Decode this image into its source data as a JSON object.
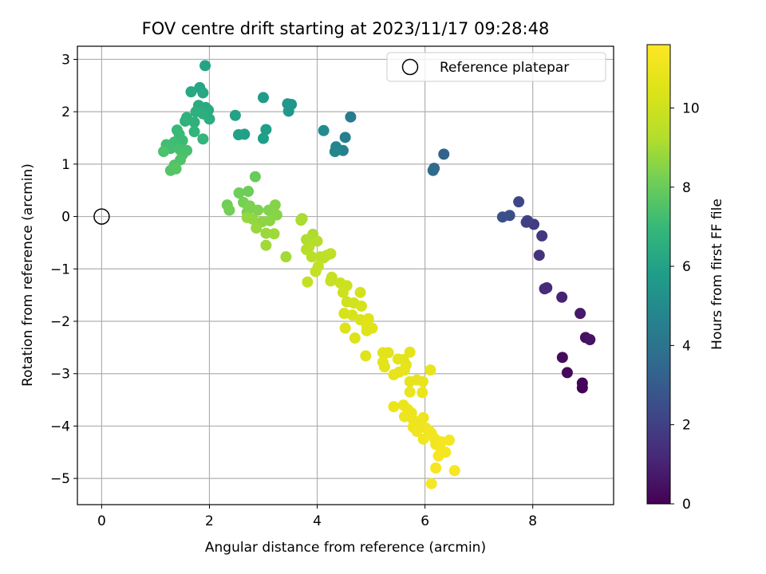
{
  "chart_data": {
    "type": "scatter",
    "title": "FOV centre drift starting at 2023/11/17 09:28:48",
    "xlabel": "Angular distance from reference (arcmin)",
    "ylabel": "Rotation from reference (arcmin)",
    "xlim": [
      -0.45,
      9.5
    ],
    "ylim": [
      -5.5,
      3.25
    ],
    "xticks": [
      0,
      2,
      4,
      6,
      8
    ],
    "yticks": [
      3,
      2,
      1,
      0,
      -1,
      -2,
      -3,
      -4,
      -5
    ],
    "grid": true,
    "legend": {
      "position": "top-right",
      "entries": [
        "Reference platepar"
      ]
    },
    "reference_point": {
      "x": 0,
      "y": 0,
      "label": "Reference platepar"
    },
    "colorbar": {
      "label": "Hours from first FF file",
      "range": [
        0,
        11.6
      ],
      "ticks": [
        0,
        2,
        4,
        6,
        8,
        10
      ],
      "colormap": "viridis"
    },
    "series": [
      {
        "values": [
          {
            "x": 8.92,
            "y": -3.27,
            "c": 0.0
          },
          {
            "x": 8.92,
            "y": -3.18,
            "c": 0.1
          },
          {
            "x": 8.64,
            "y": -2.98,
            "c": 0.2
          },
          {
            "x": 8.55,
            "y": -2.69,
            "c": 0.3
          },
          {
            "x": 8.98,
            "y": -2.31,
            "c": 0.45
          },
          {
            "x": 9.06,
            "y": -2.35,
            "c": 0.55
          },
          {
            "x": 8.88,
            "y": -1.85,
            "c": 0.7
          },
          {
            "x": 8.54,
            "y": -1.54,
            "c": 1.0
          },
          {
            "x": 8.26,
            "y": -1.36,
            "c": 1.2
          },
          {
            "x": 8.22,
            "y": -1.38,
            "c": 1.3
          },
          {
            "x": 8.12,
            "y": -0.74,
            "c": 1.5
          },
          {
            "x": 8.17,
            "y": -0.37,
            "c": 1.7
          },
          {
            "x": 8.02,
            "y": -0.15,
            "c": 1.85
          },
          {
            "x": 7.88,
            "y": -0.11,
            "c": 1.95
          },
          {
            "x": 7.9,
            "y": -0.08,
            "c": 2.0
          },
          {
            "x": 7.74,
            "y": 0.28,
            "c": 2.2
          },
          {
            "x": 7.57,
            "y": 0.02,
            "c": 2.5
          },
          {
            "x": 7.44,
            "y": -0.01,
            "c": 2.6
          },
          {
            "x": 6.35,
            "y": 1.19,
            "c": 3.3
          },
          {
            "x": 6.17,
            "y": 0.92,
            "c": 3.5
          },
          {
            "x": 6.15,
            "y": 0.88,
            "c": 3.6
          },
          {
            "x": 4.62,
            "y": 1.9,
            "c": 4.3
          },
          {
            "x": 4.52,
            "y": 1.51,
            "c": 4.5
          },
          {
            "x": 4.48,
            "y": 1.26,
            "c": 4.6
          },
          {
            "x": 4.35,
            "y": 1.33,
            "c": 4.75
          },
          {
            "x": 4.33,
            "y": 1.24,
            "c": 4.8
          },
          {
            "x": 4.12,
            "y": 1.64,
            "c": 5.0
          },
          {
            "x": 3.52,
            "y": 2.14,
            "c": 5.5
          },
          {
            "x": 3.45,
            "y": 2.15,
            "c": 5.55
          },
          {
            "x": 3.47,
            "y": 2.01,
            "c": 5.6
          },
          {
            "x": 3.0,
            "y": 2.27,
            "c": 5.7
          },
          {
            "x": 3.05,
            "y": 1.66,
            "c": 5.8
          },
          {
            "x": 3.0,
            "y": 1.49,
            "c": 5.85
          },
          {
            "x": 2.65,
            "y": 1.57,
            "c": 5.9
          },
          {
            "x": 2.54,
            "y": 1.56,
            "c": 5.95
          },
          {
            "x": 2.48,
            "y": 1.93,
            "c": 6.0
          },
          {
            "x": 1.92,
            "y": 2.88,
            "c": 6.1
          },
          {
            "x": 1.82,
            "y": 2.46,
            "c": 6.15
          },
          {
            "x": 1.88,
            "y": 2.36,
            "c": 6.2
          },
          {
            "x": 1.66,
            "y": 2.38,
            "c": 6.25
          },
          {
            "x": 1.93,
            "y": 2.08,
            "c": 6.3
          },
          {
            "x": 1.98,
            "y": 2.03,
            "c": 6.35
          },
          {
            "x": 1.8,
            "y": 2.12,
            "c": 6.4
          },
          {
            "x": 1.95,
            "y": 1.94,
            "c": 6.45
          },
          {
            "x": 2.0,
            "y": 1.86,
            "c": 6.5
          },
          {
            "x": 1.88,
            "y": 1.96,
            "c": 6.55
          },
          {
            "x": 1.75,
            "y": 2.0,
            "c": 6.6
          },
          {
            "x": 1.72,
            "y": 1.8,
            "c": 6.65
          },
          {
            "x": 1.58,
            "y": 1.89,
            "c": 6.7
          },
          {
            "x": 1.55,
            "y": 1.82,
            "c": 6.75
          },
          {
            "x": 1.72,
            "y": 1.62,
            "c": 6.8
          },
          {
            "x": 1.88,
            "y": 1.48,
            "c": 6.85
          },
          {
            "x": 1.4,
            "y": 1.65,
            "c": 7.0
          },
          {
            "x": 1.44,
            "y": 1.57,
            "c": 7.05
          },
          {
            "x": 1.5,
            "y": 1.45,
            "c": 7.1
          },
          {
            "x": 1.35,
            "y": 1.42,
            "c": 7.15
          },
          {
            "x": 1.2,
            "y": 1.37,
            "c": 7.2
          },
          {
            "x": 1.28,
            "y": 1.3,
            "c": 7.25
          },
          {
            "x": 1.45,
            "y": 1.28,
            "c": 7.3
          },
          {
            "x": 1.58,
            "y": 1.26,
            "c": 7.35
          },
          {
            "x": 1.5,
            "y": 1.18,
            "c": 7.4
          },
          {
            "x": 1.15,
            "y": 1.24,
            "c": 7.45
          },
          {
            "x": 1.46,
            "y": 1.08,
            "c": 7.5
          },
          {
            "x": 1.35,
            "y": 0.98,
            "c": 7.55
          },
          {
            "x": 1.28,
            "y": 0.88,
            "c": 7.6
          },
          {
            "x": 1.38,
            "y": 0.91,
            "c": 7.65
          },
          {
            "x": 2.85,
            "y": 0.76,
            "c": 8.0
          },
          {
            "x": 2.72,
            "y": 0.48,
            "c": 8.05
          },
          {
            "x": 2.55,
            "y": 0.45,
            "c": 8.1
          },
          {
            "x": 2.33,
            "y": 0.22,
            "c": 8.15
          },
          {
            "x": 2.37,
            "y": 0.12,
            "c": 8.2
          },
          {
            "x": 2.63,
            "y": 0.27,
            "c": 8.25
          },
          {
            "x": 2.7,
            "y": 0.08,
            "c": 8.3
          },
          {
            "x": 2.75,
            "y": 0.2,
            "c": 8.35
          },
          {
            "x": 2.9,
            "y": 0.12,
            "c": 8.4
          },
          {
            "x": 3.1,
            "y": 0.12,
            "c": 8.45
          },
          {
            "x": 3.22,
            "y": 0.22,
            "c": 8.5
          },
          {
            "x": 3.25,
            "y": 0.03,
            "c": 8.55
          },
          {
            "x": 3.12,
            "y": -0.08,
            "c": 8.6
          },
          {
            "x": 2.98,
            "y": -0.1,
            "c": 8.65
          },
          {
            "x": 2.8,
            "y": -0.05,
            "c": 8.7
          },
          {
            "x": 2.7,
            "y": -0.02,
            "c": 8.75
          },
          {
            "x": 2.87,
            "y": -0.22,
            "c": 8.8
          },
          {
            "x": 3.05,
            "y": -0.32,
            "c": 8.85
          },
          {
            "x": 3.2,
            "y": -0.33,
            "c": 8.9
          },
          {
            "x": 3.05,
            "y": -0.55,
            "c": 8.95
          },
          {
            "x": 3.42,
            "y": -0.77,
            "c": 9.0
          },
          {
            "x": 3.72,
            "y": -0.04,
            "c": 9.05
          },
          {
            "x": 3.7,
            "y": -0.07,
            "c": 9.1
          },
          {
            "x": 3.92,
            "y": -0.34,
            "c": 9.15
          },
          {
            "x": 3.8,
            "y": -0.44,
            "c": 9.2
          },
          {
            "x": 4.0,
            "y": -0.47,
            "c": 9.25
          },
          {
            "x": 3.85,
            "y": -0.58,
            "c": 9.3
          },
          {
            "x": 3.8,
            "y": -0.63,
            "c": 9.35
          },
          {
            "x": 3.9,
            "y": -0.77,
            "c": 9.4
          },
          {
            "x": 4.06,
            "y": -0.77,
            "c": 9.45
          },
          {
            "x": 4.18,
            "y": -0.74,
            "c": 9.5
          },
          {
            "x": 4.12,
            "y": -0.79,
            "c": 9.55
          },
          {
            "x": 4.25,
            "y": -0.71,
            "c": 9.6
          },
          {
            "x": 4.02,
            "y": -0.95,
            "c": 9.65
          },
          {
            "x": 3.97,
            "y": -1.05,
            "c": 9.7
          },
          {
            "x": 3.82,
            "y": -1.25,
            "c": 9.75
          },
          {
            "x": 4.27,
            "y": -1.16,
            "c": 9.8
          },
          {
            "x": 4.25,
            "y": -1.23,
            "c": 9.85
          },
          {
            "x": 4.43,
            "y": -1.27,
            "c": 9.9
          },
          {
            "x": 4.55,
            "y": -1.32,
            "c": 9.95
          },
          {
            "x": 4.48,
            "y": -1.45,
            "c": 10.0
          },
          {
            "x": 4.55,
            "y": -1.63,
            "c": 10.05
          },
          {
            "x": 4.68,
            "y": -1.65,
            "c": 10.1
          },
          {
            "x": 4.8,
            "y": -1.45,
            "c": 10.15
          },
          {
            "x": 4.82,
            "y": -1.71,
            "c": 10.2
          },
          {
            "x": 4.5,
            "y": -1.85,
            "c": 10.25
          },
          {
            "x": 4.65,
            "y": -1.88,
            "c": 10.3
          },
          {
            "x": 4.8,
            "y": -1.97,
            "c": 10.35
          },
          {
            "x": 4.52,
            "y": -2.13,
            "c": 10.4
          },
          {
            "x": 4.7,
            "y": -2.32,
            "c": 10.45
          },
          {
            "x": 4.95,
            "y": -1.95,
            "c": 10.5
          },
          {
            "x": 4.92,
            "y": -2.08,
            "c": 10.52
          },
          {
            "x": 5.02,
            "y": -2.13,
            "c": 10.54
          },
          {
            "x": 4.92,
            "y": -2.18,
            "c": 10.56
          },
          {
            "x": 4.9,
            "y": -2.66,
            "c": 10.58
          },
          {
            "x": 5.22,
            "y": -2.6,
            "c": 10.6
          },
          {
            "x": 5.32,
            "y": -2.6,
            "c": 10.62
          },
          {
            "x": 5.22,
            "y": -2.78,
            "c": 10.64
          },
          {
            "x": 5.25,
            "y": -2.87,
            "c": 10.66
          },
          {
            "x": 5.5,
            "y": -2.72,
            "c": 10.68
          },
          {
            "x": 5.6,
            "y": -2.73,
            "c": 10.7
          },
          {
            "x": 5.65,
            "y": -2.83,
            "c": 10.72
          },
          {
            "x": 5.72,
            "y": -2.59,
            "c": 10.74
          },
          {
            "x": 5.62,
            "y": -2.93,
            "c": 10.76
          },
          {
            "x": 5.42,
            "y": -3.02,
            "c": 10.78
          },
          {
            "x": 5.52,
            "y": -2.97,
            "c": 10.8
          },
          {
            "x": 5.72,
            "y": -3.15,
            "c": 10.82
          },
          {
            "x": 5.85,
            "y": -3.12,
            "c": 10.84
          },
          {
            "x": 5.96,
            "y": -3.15,
            "c": 10.86
          },
          {
            "x": 6.1,
            "y": -2.93,
            "c": 10.88
          },
          {
            "x": 5.72,
            "y": -3.35,
            "c": 10.9
          },
          {
            "x": 5.95,
            "y": -3.36,
            "c": 10.92
          },
          {
            "x": 5.42,
            "y": -3.63,
            "c": 10.94
          },
          {
            "x": 5.6,
            "y": -3.6,
            "c": 10.96
          },
          {
            "x": 5.68,
            "y": -3.68,
            "c": 10.98
          },
          {
            "x": 5.75,
            "y": -3.75,
            "c": 11.0
          },
          {
            "x": 5.62,
            "y": -3.82,
            "c": 11.02
          },
          {
            "x": 5.78,
            "y": -3.88,
            "c": 11.04
          },
          {
            "x": 5.9,
            "y": -3.93,
            "c": 11.06
          },
          {
            "x": 5.97,
            "y": -3.84,
            "c": 11.08
          },
          {
            "x": 5.78,
            "y": -4.02,
            "c": 11.1
          },
          {
            "x": 5.85,
            "y": -4.1,
            "c": 11.12
          },
          {
            "x": 6.02,
            "y": -4.04,
            "c": 11.14
          },
          {
            "x": 6.07,
            "y": -4.08,
            "c": 11.16
          },
          {
            "x": 5.97,
            "y": -4.25,
            "c": 11.18
          },
          {
            "x": 6.12,
            "y": -4.14,
            "c": 11.2
          },
          {
            "x": 6.18,
            "y": -4.24,
            "c": 11.22
          },
          {
            "x": 6.2,
            "y": -4.35,
            "c": 11.24
          },
          {
            "x": 6.3,
            "y": -4.3,
            "c": 11.26
          },
          {
            "x": 6.45,
            "y": -4.27,
            "c": 11.28
          },
          {
            "x": 6.3,
            "y": -4.45,
            "c": 11.3
          },
          {
            "x": 6.38,
            "y": -4.5,
            "c": 11.32
          },
          {
            "x": 6.25,
            "y": -4.57,
            "c": 11.34
          },
          {
            "x": 6.2,
            "y": -4.8,
            "c": 11.36
          },
          {
            "x": 6.55,
            "y": -4.85,
            "c": 11.38
          },
          {
            "x": 6.12,
            "y": -5.1,
            "c": 11.4
          }
        ]
      }
    ]
  }
}
